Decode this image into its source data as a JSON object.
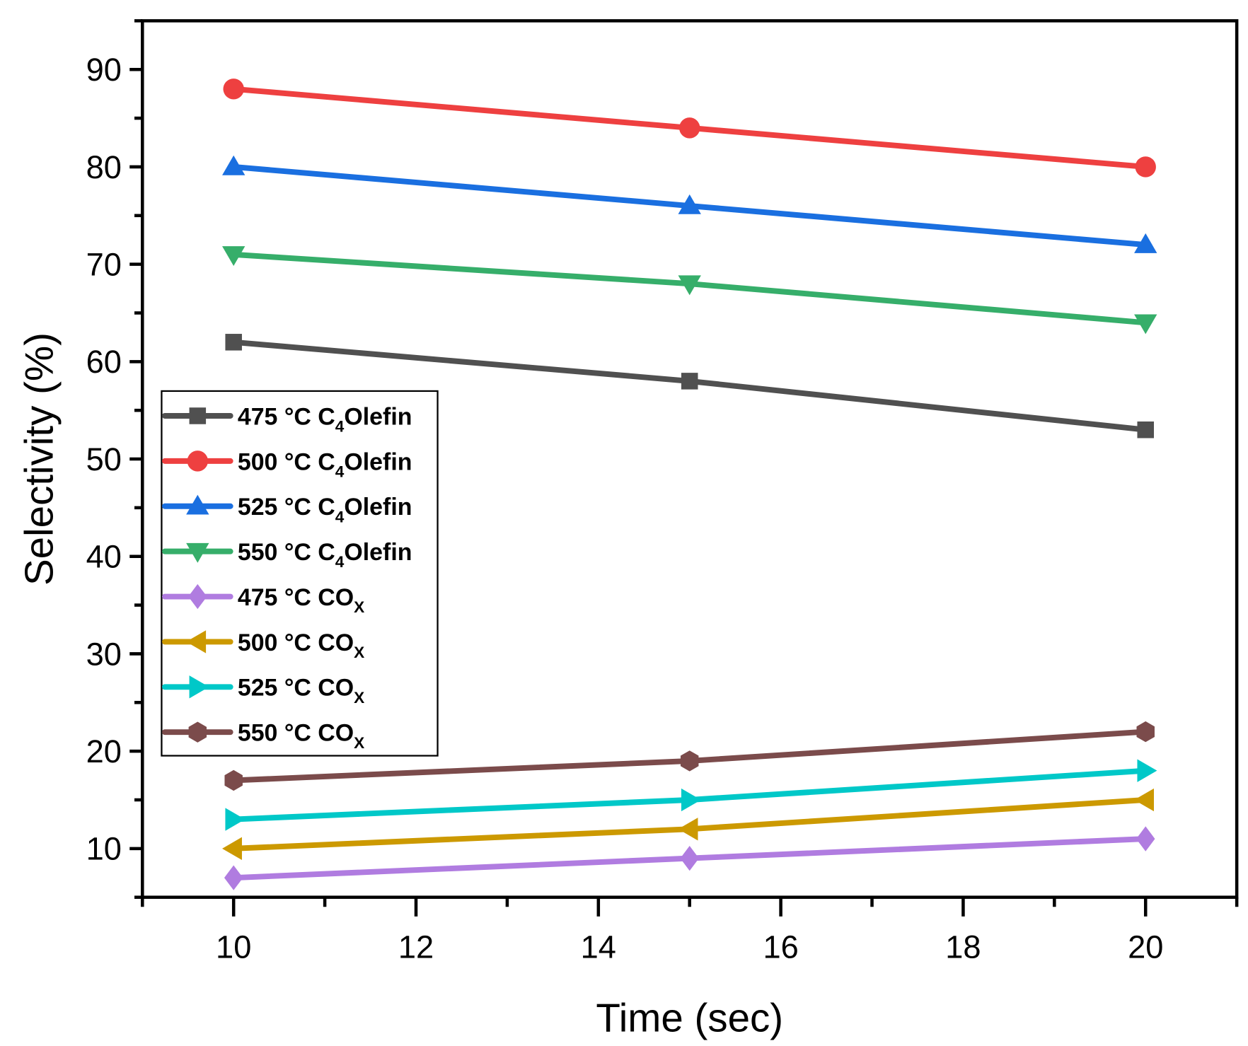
{
  "chart_data": {
    "type": "line",
    "title": "",
    "xlabel": "Time (sec)",
    "ylabel": "Selectivity (%)",
    "xlim": [
      9,
      21
    ],
    "ylim": [
      5,
      95
    ],
    "xticks": [
      10,
      12,
      14,
      16,
      18,
      20
    ],
    "yticks": [
      10,
      20,
      30,
      40,
      50,
      60,
      70,
      80,
      90
    ],
    "grid": false,
    "legend_position": "middle-left",
    "x": [
      10,
      15,
      20
    ],
    "series": [
      {
        "name": "475 °C C4Olefin",
        "label_main": "475 °C C",
        "label_sub": "4",
        "label_tail": "Olefin",
        "marker": "square",
        "color": "#505050",
        "values": [
          62,
          58,
          53
        ]
      },
      {
        "name": "500 °C C4Olefin",
        "label_main": "500 °C C",
        "label_sub": "4",
        "label_tail": "Olefin",
        "marker": "circle",
        "color": "#ee4040",
        "values": [
          88,
          84,
          80
        ]
      },
      {
        "name": "525 °C C4Olefin",
        "label_main": "525 °C C",
        "label_sub": "4",
        "label_tail": "Olefin",
        "marker": "triangle-up",
        "color": "#1a6fe0",
        "values": [
          80,
          76,
          72
        ]
      },
      {
        "name": "550 °C C4Olefin",
        "label_main": "550 °C C",
        "label_sub": "4",
        "label_tail": "Olefin",
        "marker": "triangle-down",
        "color": "#36ae6a",
        "values": [
          71,
          68,
          64
        ]
      },
      {
        "name": "475 °C COX",
        "label_main": "475 °C CO",
        "label_sub": "X",
        "label_tail": "",
        "marker": "diamond",
        "color": "#b07ce0",
        "values": [
          7,
          9,
          11
        ]
      },
      {
        "name": "500 °C COX",
        "label_main": "500 °C CO",
        "label_sub": "X",
        "label_tail": "",
        "marker": "triangle-left",
        "color": "#cc9900",
        "values": [
          10,
          12,
          15
        ]
      },
      {
        "name": "525 °C COX",
        "label_main": "525 °C CO",
        "label_sub": "X",
        "label_tail": "",
        "marker": "triangle-right",
        "color": "#00c8c8",
        "values": [
          13,
          15,
          18
        ]
      },
      {
        "name": "550 °C COX",
        "label_main": "550 °C CO",
        "label_sub": "X",
        "label_tail": "",
        "marker": "hexagon",
        "color": "#7b4b4b",
        "values": [
          17,
          19,
          22
        ]
      }
    ]
  }
}
